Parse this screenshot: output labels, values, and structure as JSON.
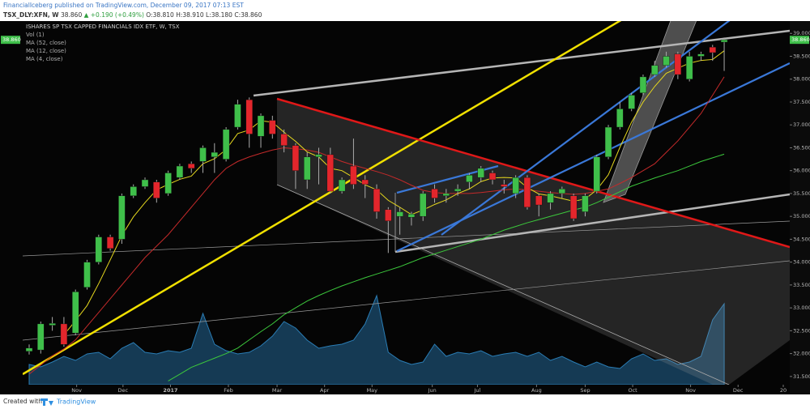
{
  "header": {
    "author_line": "FinancialIceberg published on TradingView.com, December 09, 2017 07:13 EST",
    "symbol": "TSX_DLY:XFN, W",
    "price": "38.860",
    "change": "▲ +0.190 (+0.49%)",
    "ohlc": "O:38.810 H:38.910 L:38.180 C:38.860"
  },
  "footer": {
    "created": "Created with",
    "brand": "TradingView"
  },
  "chart_data": {
    "type": "candlestick",
    "title": "ISHARES SP TSX CAPPED FINANCIALS IDX ETF, W, TSX",
    "up_color": "#3fbf4a",
    "down_color": "#e3262c",
    "xlim": [
      -0.56,
      65.66
    ],
    "xticks": [
      {
        "value": 4.1,
        "label": "Nov"
      },
      {
        "value": 8.1,
        "label": "Dec"
      },
      {
        "value": 12.2,
        "label": "2017"
      },
      {
        "value": 17.2,
        "label": "Feb"
      },
      {
        "value": 21.4,
        "label": "Mar"
      },
      {
        "value": 25.5,
        "label": "Apr"
      },
      {
        "value": 29.6,
        "label": "May"
      },
      {
        "value": 34.8,
        "label": "Jun"
      },
      {
        "value": 38.7,
        "label": "Jul"
      },
      {
        "value": 43.8,
        "label": "Aug"
      },
      {
        "value": 48,
        "label": "Sep"
      },
      {
        "value": 52.1,
        "label": "Oct"
      },
      {
        "value": 57.1,
        "label": "Nov"
      },
      {
        "value": 61.2,
        "label": "Dec"
      },
      {
        "value": 65.1,
        "label": "20"
      }
    ],
    "ylim": [
      31.32,
      39.27
    ],
    "yticks": [
      {
        "value": 31.5,
        "label": "31.500"
      },
      {
        "value": 32,
        "label": "32.000"
      },
      {
        "value": 32.5,
        "label": "32.500"
      },
      {
        "value": 33,
        "label": "33.000"
      },
      {
        "value": 33.5,
        "label": "33.500"
      },
      {
        "value": 34,
        "label": "34.000"
      },
      {
        "value": 34.5,
        "label": "34.500"
      },
      {
        "value": 35,
        "label": "35.000"
      },
      {
        "value": 35.5,
        "label": "35.500"
      },
      {
        "value": 36,
        "label": "36.000"
      },
      {
        "value": 36.5,
        "label": "36.500"
      },
      {
        "value": 37,
        "label": "37.000"
      },
      {
        "value": 37.5,
        "label": "37.500"
      },
      {
        "value": 38,
        "label": "38.000"
      },
      {
        "value": 38.5,
        "label": "38.500"
      },
      {
        "value": 39,
        "label": "39.000"
      }
    ],
    "grid": false,
    "last_label": {
      "value": 38.86,
      "label": "38.860"
    },
    "open": [
      32.05,
      32.08,
      32.62,
      32.65,
      32.45,
      33.45,
      34.0,
      34.55,
      34.5,
      35.45,
      35.65,
      35.75,
      35.5,
      35.85,
      36.15,
      36.2,
      36.3,
      36.25,
      36.95,
      37.55,
      36.75,
      37.1,
      36.8,
      36.55,
      35.8,
      36.3,
      36.35,
      35.55,
      36.1,
      35.8,
      35.6,
      35.15,
      35.0,
      34.98,
      35.0,
      35.6,
      35.45,
      35.55,
      35.75,
      35.85,
      35.95,
      35.7,
      35.5,
      35.85,
      35.45,
      35.3,
      35.5,
      35.45,
      35.1,
      35.55,
      36.3,
      36.95,
      37.35,
      37.7,
      38.1,
      38.3,
      38.55,
      38.0,
      38.5,
      38.7,
      38.81
    ],
    "high": [
      32.2,
      32.7,
      32.8,
      32.8,
      33.4,
      34.05,
      34.6,
      34.6,
      35.5,
      35.7,
      35.85,
      35.8,
      36.0,
      36.15,
      36.2,
      36.55,
      36.6,
      36.95,
      37.55,
      37.6,
      37.25,
      37.2,
      36.9,
      36.6,
      36.4,
      36.5,
      36.5,
      35.85,
      36.7,
      35.9,
      35.7,
      35.2,
      35.2,
      35.1,
      35.55,
      35.7,
      35.6,
      35.7,
      35.95,
      36.1,
      36.0,
      35.8,
      35.9,
      35.9,
      35.5,
      35.55,
      35.65,
      35.5,
      35.5,
      36.35,
      37.0,
      37.5,
      37.7,
      38.1,
      38.4,
      38.6,
      38.6,
      38.6,
      38.6,
      38.75,
      38.91
    ],
    "low": [
      31.98,
      32.0,
      32.5,
      32.15,
      32.4,
      33.4,
      33.95,
      34.25,
      34.4,
      35.4,
      35.6,
      35.3,
      35.45,
      35.8,
      35.95,
      35.95,
      35.95,
      36.2,
      36.9,
      36.5,
      36.5,
      36.7,
      36.4,
      35.6,
      35.6,
      35.7,
      35.5,
      35.5,
      35.6,
      35.4,
      34.95,
      34.2,
      34.6,
      34.8,
      34.9,
      35.3,
      35.3,
      35.45,
      35.6,
      35.75,
      35.7,
      35.5,
      35.4,
      35.15,
      35.0,
      35.15,
      35.4,
      34.9,
      35.0,
      35.5,
      36.25,
      36.9,
      37.3,
      37.65,
      38.05,
      38.25,
      38.0,
      37.95,
      38.4,
      38.4,
      38.18
    ],
    "close": [
      32.12,
      32.65,
      32.66,
      32.2,
      33.35,
      34.0,
      34.55,
      34.3,
      35.45,
      35.65,
      35.8,
      35.4,
      35.95,
      36.1,
      36.05,
      36.5,
      36.4,
      36.9,
      37.45,
      36.8,
      37.2,
      36.8,
      36.55,
      36.0,
      36.3,
      36.35,
      35.55,
      35.8,
      35.7,
      35.7,
      35.1,
      34.9,
      35.1,
      35.05,
      35.5,
      35.4,
      35.5,
      35.6,
      35.9,
      36.05,
      35.8,
      35.65,
      35.85,
      35.2,
      35.25,
      35.5,
      35.6,
      34.95,
      35.45,
      36.3,
      36.95,
      37.35,
      37.65,
      38.05,
      38.3,
      38.5,
      38.1,
      38.5,
      38.55,
      38.58,
      38.86
    ],
    "volume": {
      "name": "Vol (1)",
      "color": "#2a7db5",
      "vlim": [
        0,
        150
      ],
      "values": [
        25,
        22,
        28,
        35,
        30,
        38,
        40,
        32,
        45,
        52,
        40,
        38,
        42,
        40,
        45,
        88,
        50,
        42,
        38,
        40,
        48,
        60,
        78,
        70,
        55,
        45,
        48,
        50,
        55,
        75,
        110,
        40,
        30,
        25,
        28,
        50,
        35,
        40,
        38,
        42,
        35,
        38,
        40,
        35,
        40,
        30,
        35,
        28,
        22,
        28,
        22,
        20,
        32,
        38,
        30,
        32,
        25,
        28,
        35,
        80,
        100
      ]
    },
    "series": [
      {
        "name": "MA (52, close)",
        "color": "#3cc83c",
        "values": [
          null,
          null,
          null,
          null,
          null,
          null,
          null,
          null,
          null,
          null,
          null,
          null,
          31.4,
          31.55,
          31.7,
          31.8,
          31.9,
          32.0,
          32.12,
          32.3,
          32.48,
          32.65,
          32.85,
          33.0,
          33.15,
          33.27,
          33.38,
          33.48,
          33.57,
          33.66,
          33.74,
          33.82,
          33.9,
          34.0,
          34.1,
          34.18,
          34.26,
          34.34,
          34.42,
          34.5,
          34.6,
          34.7,
          34.78,
          34.86,
          34.93,
          35.0,
          35.07,
          35.14,
          35.2,
          35.3,
          35.42,
          35.54,
          35.66,
          35.75,
          35.84,
          35.92,
          36.0,
          36.1,
          36.2,
          36.28,
          36.36
        ]
      },
      {
        "name": "MA (12, close)",
        "color": "#c42a2a",
        "values": [
          31.55,
          31.75,
          31.95,
          32.1,
          32.3,
          32.6,
          32.9,
          33.2,
          33.5,
          33.8,
          34.1,
          34.35,
          34.6,
          34.9,
          35.2,
          35.5,
          35.8,
          36.05,
          36.2,
          36.3,
          36.38,
          36.45,
          36.5,
          36.48,
          36.45,
          36.4,
          36.3,
          36.2,
          36.12,
          36.05,
          35.98,
          35.9,
          35.8,
          35.68,
          35.57,
          35.52,
          35.5,
          35.5,
          35.5,
          35.52,
          35.55,
          35.58,
          35.6,
          35.58,
          35.55,
          35.52,
          35.5,
          35.48,
          35.5,
          35.55,
          35.6,
          35.72,
          35.85,
          36.0,
          36.15,
          36.4,
          36.65,
          36.95,
          37.25,
          37.65,
          38.05
        ]
      },
      {
        "name": "MA (4, close)",
        "color": "#e6d81e",
        "values": [
          null,
          null,
          null,
          32.41,
          32.72,
          33.05,
          33.53,
          34.05,
          34.58,
          34.99,
          35.3,
          35.58,
          35.7,
          35.81,
          35.88,
          36.15,
          36.26,
          36.46,
          36.81,
          36.89,
          37.09,
          37.06,
          36.84,
          36.64,
          36.41,
          36.3,
          36.05,
          36.0,
          35.85,
          35.69,
          35.58,
          35.35,
          35.2,
          35.04,
          35.14,
          35.26,
          35.36,
          35.5,
          35.6,
          35.76,
          35.84,
          35.85,
          35.84,
          35.63,
          35.49,
          35.45,
          35.39,
          35.33,
          35.38,
          35.58,
          35.91,
          36.51,
          37.06,
          37.5,
          37.84,
          38.13,
          38.24,
          38.35,
          38.41,
          38.43,
          38.62
        ]
      }
    ]
  }
}
